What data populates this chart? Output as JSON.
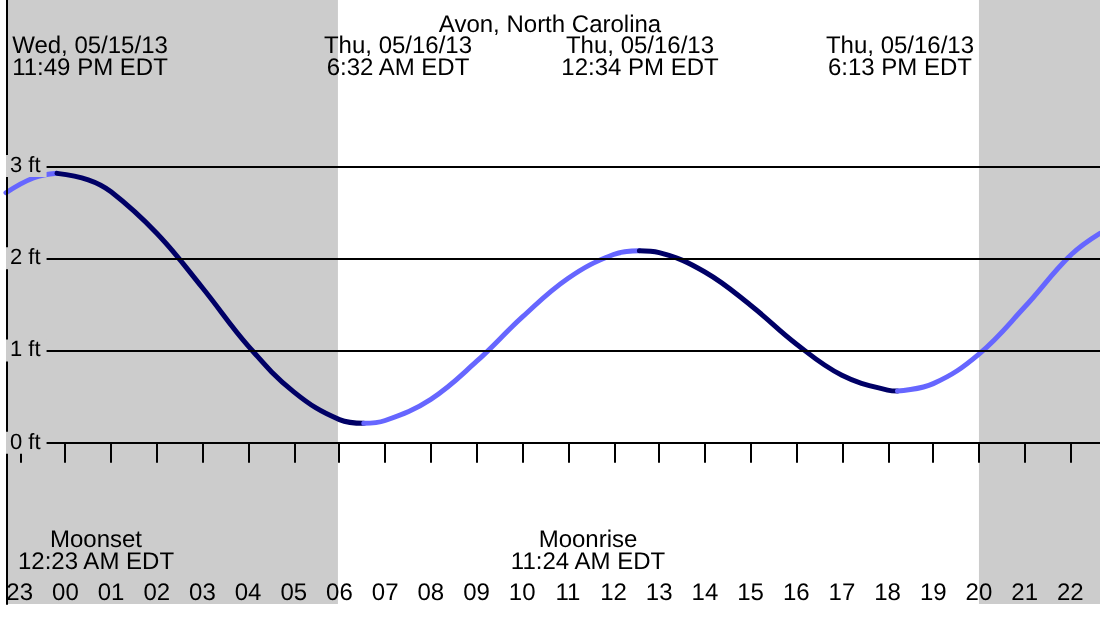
{
  "chart_data": {
    "type": "line",
    "title": "Avon, North Carolina",
    "xlim": [
      "--05-15T22:42",
      "--05-16T22:39"
    ],
    "ylim": [
      -1.75,
      4.8
    ],
    "xticks": [
      {
        "value": "--05-15T23:00",
        "label": "23"
      },
      {
        "value": "--05-16T00:00",
        "label": "00"
      },
      {
        "value": "--05-16T01:00",
        "label": "01"
      },
      {
        "value": "--05-16T02:00",
        "label": "02"
      },
      {
        "value": "--05-16T03:00",
        "label": "03"
      },
      {
        "value": "--05-16T04:00",
        "label": "04"
      },
      {
        "value": "--05-16T05:00",
        "label": "05"
      },
      {
        "value": "--05-16T06:00",
        "label": "06"
      },
      {
        "value": "--05-16T07:00",
        "label": "07"
      },
      {
        "value": "--05-16T08:00",
        "label": "08"
      },
      {
        "value": "--05-16T09:00",
        "label": "09"
      },
      {
        "value": "--05-16T10:00",
        "label": "10"
      },
      {
        "value": "--05-16T11:00",
        "label": "11"
      },
      {
        "value": "--05-16T12:00",
        "label": "12"
      },
      {
        "value": "--05-16T13:00",
        "label": "13"
      },
      {
        "value": "--05-16T14:00",
        "label": "14"
      },
      {
        "value": "--05-16T15:00",
        "label": "15"
      },
      {
        "value": "--05-16T16:00",
        "label": "16"
      },
      {
        "value": "--05-16T17:00",
        "label": "17"
      },
      {
        "value": "--05-16T18:00",
        "label": "18"
      },
      {
        "value": "--05-16T19:00",
        "label": "19"
      },
      {
        "value": "--05-16T20:00",
        "label": "20"
      },
      {
        "value": "--05-16T21:00",
        "label": "21"
      },
      {
        "value": "--05-16T22:00",
        "label": "22"
      }
    ],
    "yticks": [
      {
        "value": 0,
        "label": "0 ft"
      },
      {
        "value": 1,
        "label": "1 ft"
      },
      {
        "value": 2,
        "label": "2 ft"
      },
      {
        "value": 3,
        "label": "3 ft"
      }
    ],
    "grid": "y",
    "marker": "none",
    "line_style": "solid",
    "bands": [
      {
        "axis": "x",
        "from": "--05-15T22:42",
        "to": "--05-16T05:58",
        "color": "#cccccc"
      },
      {
        "axis": "x",
        "from": "--05-16T20:00",
        "to": "--05-16T22:39",
        "color": "#cccccc"
      }
    ],
    "series": [
      {
        "color": "#6666ff",
        "x": [
          "--05-15T22:42",
          "--05-15T23:18",
          "--05-15T23:49"
        ],
        "values": [
          2.71,
          2.87,
          2.92
        ]
      },
      {
        "color": "#000066",
        "x": [
          "--05-15T23:49",
          "--05-16T00:30",
          "--05-16T01:00",
          "--05-16T02:00",
          "--05-16T03:00",
          "--05-16T04:00",
          "--05-16T05:00",
          "--05-16T06:00",
          "--05-16T06:32"
        ],
        "values": [
          2.92,
          2.85,
          2.72,
          2.27,
          1.68,
          1.05,
          0.55,
          0.25,
          0.21
        ]
      },
      {
        "color": "#6666ff",
        "x": [
          "--05-16T06:32",
          "--05-16T07:00",
          "--05-16T08:00",
          "--05-16T09:00",
          "--05-16T10:00",
          "--05-16T11:00",
          "--05-16T12:00",
          "--05-16T12:34"
        ],
        "values": [
          0.21,
          0.24,
          0.47,
          0.88,
          1.36,
          1.78,
          2.04,
          2.08
        ]
      },
      {
        "color": "#000066",
        "x": [
          "--05-16T12:34",
          "--05-16T13:00",
          "--05-16T14:00",
          "--05-16T15:00",
          "--05-16T16:00",
          "--05-16T17:00",
          "--05-16T18:00",
          "--05-16T18:13"
        ],
        "values": [
          2.08,
          2.06,
          1.85,
          1.49,
          1.07,
          0.73,
          0.57,
          0.56
        ]
      },
      {
        "color": "#6666ff",
        "x": [
          "--05-16T18:13",
          "--05-16T19:00",
          "--05-16T20:00",
          "--05-16T21:00",
          "--05-16T22:00",
          "--05-16T22:39"
        ],
        "values": [
          0.56,
          0.64,
          0.96,
          1.47,
          2.03,
          2.27
        ]
      }
    ],
    "annotations": [
      "Wed, 05/15/13\n11:49 PM EDT",
      "Thu, 05/16/13\n6:32 AM EDT",
      "Thu, 05/16/13\n12:34 PM EDT",
      "Thu, 05/16/13\n6:13 PM EDT",
      "Moonset\n12:23 AM EDT",
      "Moonrise\n11:24 AM EDT"
    ]
  }
}
